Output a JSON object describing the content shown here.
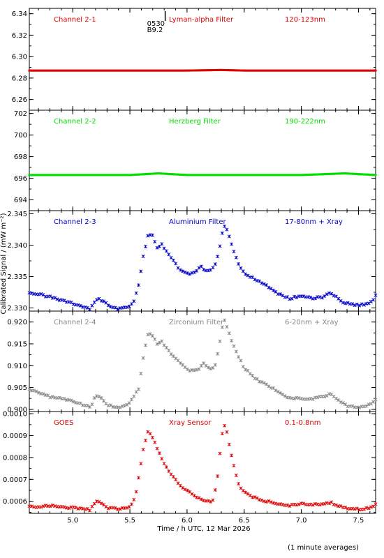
{
  "figure": {
    "xlabel": "Time / h UTC, 12 Mar 2026",
    "ylabel": "Calibrated Signal / (mW m⁻²)",
    "footnote": "(1 minute averages)",
    "marker": {
      "line1": "0530",
      "line2": "B9.2",
      "x": 5.65
    }
  },
  "chart_data": [
    {
      "type": "scatter",
      "panel": "Channel 2-1",
      "labels": [
        "Channel 2-1",
        "Lyman-alpha Filter",
        "120-123nm"
      ],
      "color": "#e00000",
      "xlim": [
        4.62,
        7.65
      ],
      "ylim": [
        6.25,
        6.345
      ],
      "yticks": [
        6.26,
        6.28,
        6.3,
        6.32,
        6.34
      ],
      "points": [
        [
          4.62,
          6.287
        ],
        [
          5.0,
          6.287
        ],
        [
          5.5,
          6.287
        ],
        [
          6.0,
          6.287
        ],
        [
          6.3,
          6.2875
        ],
        [
          6.5,
          6.287
        ],
        [
          7.0,
          6.287
        ],
        [
          7.5,
          6.287
        ],
        [
          7.65,
          6.287
        ]
      ],
      "flat": true
    },
    {
      "type": "scatter",
      "panel": "Channel 2-2",
      "labels": [
        "Channel 2-2",
        "Herzberg Filter",
        "190-222nm"
      ],
      "color": "#00dd00",
      "xlim": [
        4.62,
        7.65
      ],
      "ylim": [
        693,
        702.3
      ],
      "yticks": [
        694,
        696,
        698,
        700,
        702
      ],
      "points": [
        [
          4.62,
          696.3
        ],
        [
          5.0,
          696.3
        ],
        [
          5.5,
          696.3
        ],
        [
          5.75,
          696.45
        ],
        [
          6.0,
          696.3
        ],
        [
          6.5,
          696.3
        ],
        [
          7.0,
          696.3
        ],
        [
          7.38,
          696.45
        ],
        [
          7.65,
          696.3
        ]
      ],
      "flat": true
    },
    {
      "type": "scatter",
      "panel": "Channel 2-3",
      "labels": [
        "Channel 2-3",
        "Aluminium Filter",
        "17-80nm + Xray"
      ],
      "color": "#0000cc",
      "xlim": [
        4.62,
        7.65
      ],
      "ylim": [
        2.3295,
        2.3455
      ],
      "yticks": [
        2.33,
        2.335,
        2.34,
        2.345
      ],
      "points": [
        [
          4.62,
          2.3325
        ],
        [
          4.75,
          2.332
        ],
        [
          4.85,
          2.3315
        ],
        [
          4.95,
          2.331
        ],
        [
          5.05,
          2.3305
        ],
        [
          5.15,
          2.3298
        ],
        [
          5.22,
          2.3315
        ],
        [
          5.28,
          2.331
        ],
        [
          5.32,
          2.3303
        ],
        [
          5.4,
          2.3298
        ],
        [
          5.48,
          2.3302
        ],
        [
          5.53,
          2.3308
        ],
        [
          5.58,
          2.334
        ],
        [
          5.62,
          2.3385
        ],
        [
          5.66,
          2.3418
        ],
        [
          5.7,
          2.3415
        ],
        [
          5.74,
          2.3395
        ],
        [
          5.78,
          2.3402
        ],
        [
          5.82,
          2.339
        ],
        [
          5.88,
          2.3375
        ],
        [
          5.95,
          2.3358
        ],
        [
          6.02,
          2.3355
        ],
        [
          6.08,
          2.3358
        ],
        [
          6.12,
          2.3368
        ],
        [
          6.15,
          2.336
        ],
        [
          6.2,
          2.3358
        ],
        [
          6.25,
          2.337
        ],
        [
          6.28,
          2.339
        ],
        [
          6.32,
          2.3432
        ],
        [
          6.35,
          2.3425
        ],
        [
          6.4,
          2.3395
        ],
        [
          6.45,
          2.337
        ],
        [
          6.5,
          2.3355
        ],
        [
          6.6,
          2.3345
        ],
        [
          6.7,
          2.3335
        ],
        [
          6.8,
          2.3322
        ],
        [
          6.9,
          2.3315
        ],
        [
          7.0,
          2.332
        ],
        [
          7.1,
          2.3315
        ],
        [
          7.2,
          2.3318
        ],
        [
          7.25,
          2.3325
        ],
        [
          7.3,
          2.3318
        ],
        [
          7.35,
          2.331
        ],
        [
          7.45,
          2.3305
        ],
        [
          7.55,
          2.3305
        ],
        [
          7.62,
          2.331
        ],
        [
          7.65,
          2.332
        ]
      ],
      "flat": false
    },
    {
      "type": "scatter",
      "panel": "Channel 2-4",
      "labels": [
        "Channel 2-4",
        "Zirconium Filter",
        "6-20nm + Xray"
      ],
      "color": "#888888",
      "xlim": [
        4.62,
        7.65
      ],
      "ylim": [
        0.8995,
        0.9225
      ],
      "yticks": [
        0.9,
        0.905,
        0.91,
        0.915,
        0.92
      ],
      "points": [
        [
          4.62,
          0.9045
        ],
        [
          4.7,
          0.904
        ],
        [
          4.8,
          0.9028
        ],
        [
          4.9,
          0.9025
        ],
        [
          5.0,
          0.902
        ],
        [
          5.1,
          0.901
        ],
        [
          5.16,
          0.9005
        ],
        [
          5.2,
          0.9032
        ],
        [
          5.25,
          0.9025
        ],
        [
          5.3,
          0.901
        ],
        [
          5.4,
          0.9005
        ],
        [
          5.48,
          0.901
        ],
        [
          5.53,
          0.9028
        ],
        [
          5.58,
          0.905
        ],
        [
          5.62,
          0.9125
        ],
        [
          5.66,
          0.9175
        ],
        [
          5.7,
          0.917
        ],
        [
          5.74,
          0.915
        ],
        [
          5.78,
          0.9155
        ],
        [
          5.85,
          0.913
        ],
        [
          5.95,
          0.9105
        ],
        [
          6.02,
          0.909
        ],
        [
          6.1,
          0.909
        ],
        [
          6.15,
          0.9108
        ],
        [
          6.18,
          0.9095
        ],
        [
          6.22,
          0.909
        ],
        [
          6.25,
          0.9105
        ],
        [
          6.28,
          0.9145
        ],
        [
          6.32,
          0.9208
        ],
        [
          6.35,
          0.919
        ],
        [
          6.4,
          0.915
        ],
        [
          6.45,
          0.912
        ],
        [
          6.5,
          0.9095
        ],
        [
          6.6,
          0.907
        ],
        [
          6.7,
          0.9055
        ],
        [
          6.8,
          0.904
        ],
        [
          6.9,
          0.9025
        ],
        [
          7.0,
          0.9025
        ],
        [
          7.1,
          0.9025
        ],
        [
          7.2,
          0.903
        ],
        [
          7.25,
          0.9035
        ],
        [
          7.3,
          0.9025
        ],
        [
          7.4,
          0.9008
        ],
        [
          7.5,
          0.9005
        ],
        [
          7.6,
          0.901
        ],
        [
          7.65,
          0.9022
        ]
      ],
      "flat": false
    },
    {
      "type": "scatter",
      "panel": "GOES",
      "labels": [
        "GOES",
        "Xray Sensor",
        "0.1-0.8nm"
      ],
      "color": "#e00000",
      "xlim": [
        4.62,
        7.65
      ],
      "ylim": [
        0.000545,
        0.00101
      ],
      "yticks": [
        0.0006,
        0.0007,
        0.0008,
        0.0009,
        0.001
      ],
      "ytick_labels": [
        "0.0006",
        "0.0007",
        "0.0008",
        "0.0009",
        "0.0010"
      ],
      "points": [
        [
          4.62,
          0.00058
        ],
        [
          4.7,
          0.000575
        ],
        [
          4.8,
          0.00058
        ],
        [
          4.9,
          0.000575
        ],
        [
          5.0,
          0.00057
        ],
        [
          5.1,
          0.000565
        ],
        [
          5.15,
          0.00056
        ],
        [
          5.2,
          0.0006
        ],
        [
          5.25,
          0.00059
        ],
        [
          5.3,
          0.00057
        ],
        [
          5.4,
          0.000565
        ],
        [
          5.48,
          0.00057
        ],
        [
          5.52,
          0.000585
        ],
        [
          5.55,
          0.00063
        ],
        [
          5.58,
          0.00072
        ],
        [
          5.62,
          0.00085
        ],
        [
          5.66,
          0.000925
        ],
        [
          5.7,
          0.00089
        ],
        [
          5.75,
          0.00083
        ],
        [
          5.8,
          0.00077
        ],
        [
          5.88,
          0.00071
        ],
        [
          5.95,
          0.00067
        ],
        [
          6.05,
          0.00063
        ],
        [
          6.15,
          0.000605
        ],
        [
          6.2,
          0.0006
        ],
        [
          6.23,
          0.00061
        ],
        [
          6.26,
          0.00068
        ],
        [
          6.29,
          0.00083
        ],
        [
          6.32,
          0.00096
        ],
        [
          6.35,
          0.00091
        ],
        [
          6.4,
          0.00078
        ],
        [
          6.45,
          0.00068
        ],
        [
          6.5,
          0.00064
        ],
        [
          6.6,
          0.000615
        ],
        [
          6.7,
          0.0006
        ],
        [
          6.8,
          0.000585
        ],
        [
          6.9,
          0.00058
        ],
        [
          7.0,
          0.00059
        ],
        [
          7.05,
          0.00058
        ],
        [
          7.1,
          0.000585
        ],
        [
          7.2,
          0.000585
        ],
        [
          7.25,
          0.000595
        ],
        [
          7.3,
          0.000585
        ],
        [
          7.4,
          0.00057
        ],
        [
          7.5,
          0.000565
        ],
        [
          7.6,
          0.00057
        ],
        [
          7.65,
          0.000585
        ]
      ],
      "flat": false
    }
  ],
  "x_axis": {
    "ticks": [
      5.0,
      5.5,
      6.0,
      6.5,
      7.0,
      7.5
    ],
    "tick_labels": [
      "5.0",
      "5.5",
      "6.0",
      "6.5",
      "7.0",
      "7.5"
    ]
  }
}
